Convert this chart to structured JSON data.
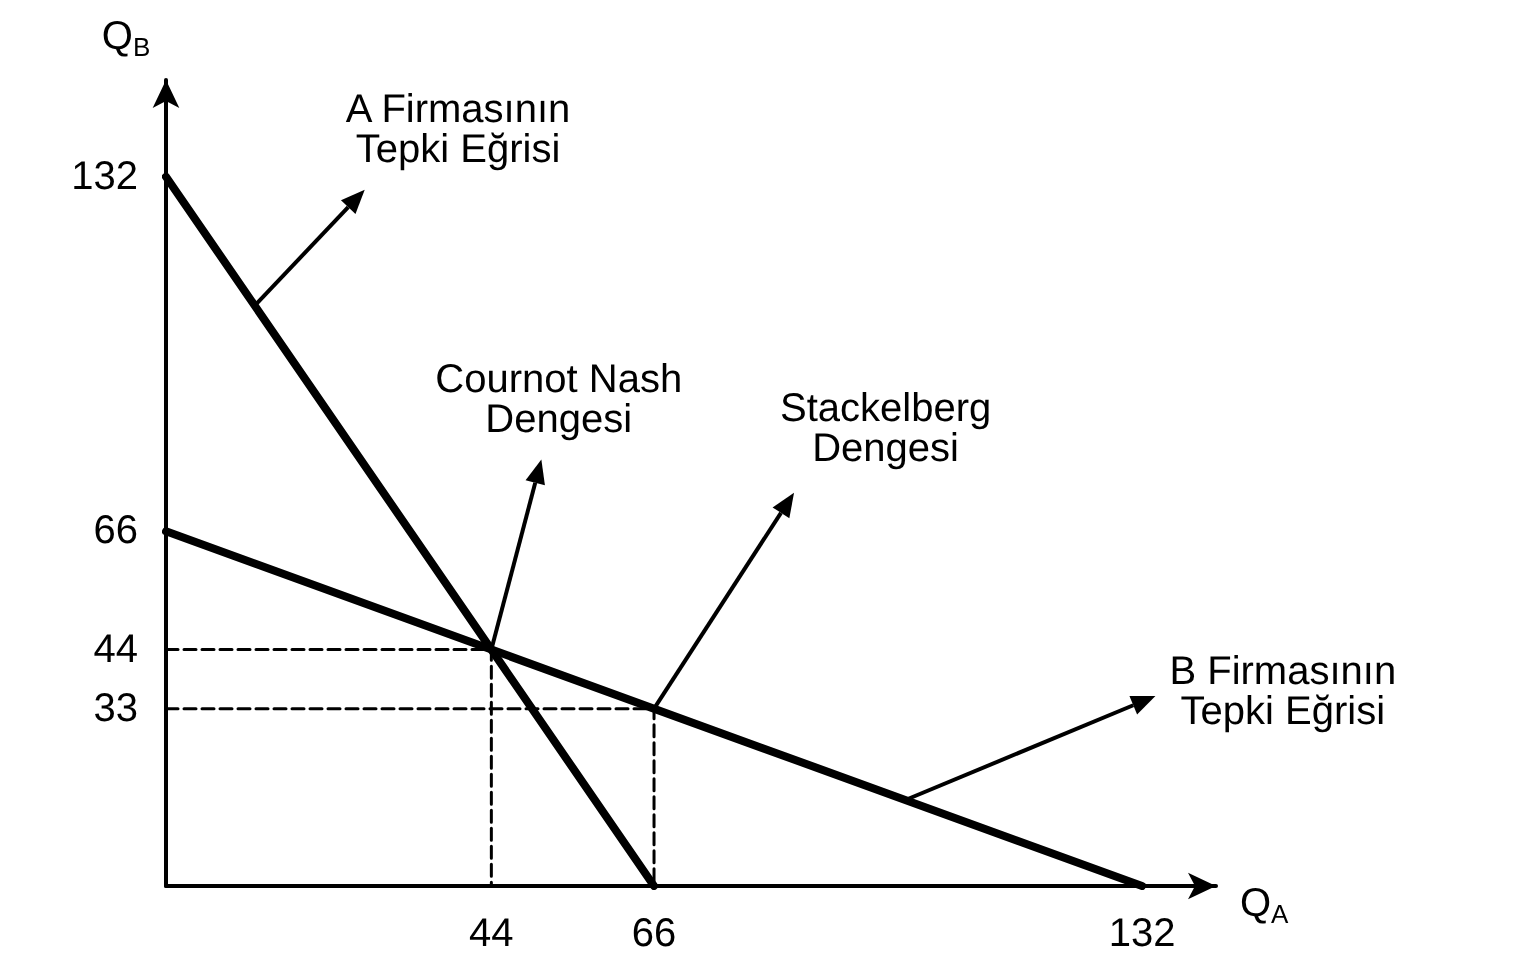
{
  "chart_data": {
    "type": "line",
    "xlabel": "Q$_{A}$",
    "ylabel": "Q$_{B}$",
    "xlim": [
      0,
      142
    ],
    "ylim": [
      0,
      150
    ],
    "xticks": [
      44,
      66,
      132
    ],
    "yticks": [
      33,
      44,
      66,
      132
    ],
    "grid": false,
    "marker": "none",
    "series": [
      {
        "x": [
          0,
          66
        ],
        "values": [
          132,
          0
        ],
        "color": "#000000",
        "line_style": "solid"
      },
      {
        "x": [
          0,
          132
        ],
        "values": [
          66,
          0
        ],
        "color": "#000000",
        "line_style": "solid"
      },
      {
        "x": [
          0,
          44,
          44
        ],
        "values": [
          44,
          44,
          0
        ],
        "color": "#000000",
        "line_style": "dashed"
      },
      {
        "x": [
          0,
          66,
          66
        ],
        "values": [
          33,
          33,
          0
        ],
        "color": "#000000",
        "line_style": "dashed"
      }
    ],
    "annotations": [
      {
        "text": "A Firmasının\nTepki Eğrisi",
        "x": 12,
        "y": 108
      },
      {
        "text": "Cournot Nash\nDengesi",
        "x": 44,
        "y": 44
      },
      {
        "text": "Stackelberg\nDengesi",
        "x": 66,
        "y": 33
      },
      {
        "text": "B Firmasının\nTepki Eğrisi",
        "x": 100,
        "y": 16
      }
    ]
  }
}
